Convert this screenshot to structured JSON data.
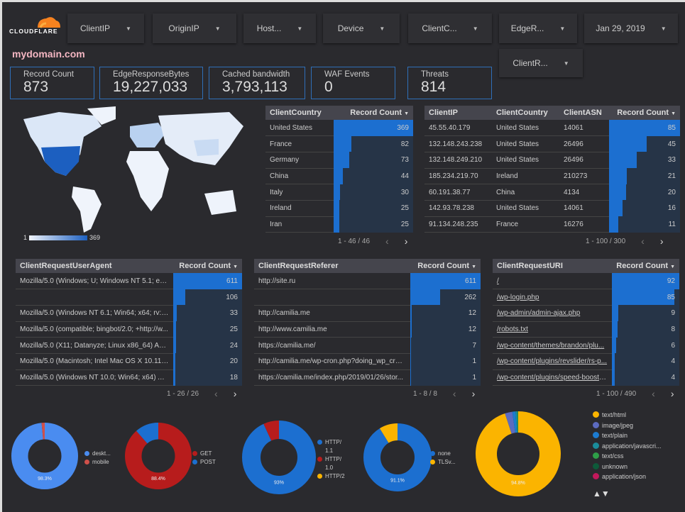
{
  "brand": {
    "name": "CLOUDFLARE",
    "orange": "#f6821f"
  },
  "filters": [
    {
      "label": "ClientIP"
    },
    {
      "label": "OriginIP"
    },
    {
      "label": "Host..."
    },
    {
      "label": "Device"
    },
    {
      "label": "ClientC..."
    },
    {
      "label": "EdgeR..."
    },
    {
      "label": "Jan 29, 2019"
    },
    {
      "label": "ClientR..."
    }
  ],
  "page_title": "mydomain.com",
  "kpis": [
    {
      "label": "Record Count",
      "value": "873"
    },
    {
      "label": "EdgeResponseBytes",
      "value": "19,227,033"
    },
    {
      "label": "Cached bandwidth",
      "value": "3,793,113"
    },
    {
      "label": "WAF Events",
      "value": "0"
    },
    {
      "label": "Threats",
      "value": "814"
    }
  ],
  "map": {
    "legend_min": "1",
    "legend_max": "369"
  },
  "country_table": {
    "headers": [
      "ClientCountry",
      "Record Count"
    ],
    "rows": [
      [
        "United States",
        369
      ],
      [
        "France",
        82
      ],
      [
        "Germany",
        73
      ],
      [
        "China",
        44
      ],
      [
        "Italy",
        30
      ],
      [
        "Ireland",
        25
      ],
      [
        "Iran",
        25
      ]
    ],
    "pager": "1 - 46 / 46"
  },
  "ip_table": {
    "headers": [
      "ClientIP",
      "ClientCountry",
      "ClientASN",
      "Record Count"
    ],
    "rows": [
      [
        "45.55.40.179",
        "United States",
        "14061",
        85
      ],
      [
        "132.148.243.238",
        "United States",
        "26496",
        45
      ],
      [
        "132.148.249.210",
        "United States",
        "26496",
        33
      ],
      [
        "185.234.219.70",
        "Ireland",
        "210273",
        21
      ],
      [
        "60.191.38.77",
        "China",
        "4134",
        20
      ],
      [
        "142.93.78.238",
        "United States",
        "14061",
        16
      ],
      [
        "91.134.248.235",
        "France",
        "16276",
        11
      ]
    ],
    "pager": "1 - 100 / 300"
  },
  "ua_table": {
    "headers": [
      "ClientRequestUserAgent",
      "Record Count"
    ],
    "rows": [
      [
        "Mozilla/5.0 (Windows; U; Windows NT 5.1; en-U...",
        611
      ],
      [
        "",
        106
      ],
      [
        "Mozilla/5.0 (Windows NT 6.1; Win64; x64; rv:64....",
        33
      ],
      [
        "Mozilla/5.0 (compatible; bingbot/2.0; +http://w...",
        25
      ],
      [
        "Mozilla/5.0 (X11; Datanyze; Linux x86_64) Appl...",
        24
      ],
      [
        "Mozilla/5.0 (Macintosh; Intel Mac OS X 10.11; r...",
        20
      ],
      [
        "Mozilla/5.0 (Windows NT 10.0; Win64; x64) App...",
        18
      ]
    ],
    "pager": "1 - 26 / 26"
  },
  "ref_table": {
    "headers": [
      "ClientRequestReferer",
      "Record Count"
    ],
    "rows": [
      [
        "http://site.ru",
        611
      ],
      [
        "",
        262
      ],
      [
        "http://camilia.me",
        12
      ],
      [
        "http://www.camilia.me",
        12
      ],
      [
        "https://camilia.me/",
        7
      ],
      [
        "http://camilia.me/wp-cron.php?doing_wp_cron...",
        1
      ],
      [
        "https://camilia.me/index.php/2019/01/26/stor...",
        1
      ]
    ],
    "pager": "1 - 8 / 8"
  },
  "uri_table": {
    "headers": [
      "ClientRequestURI",
      "Record Count"
    ],
    "rows": [
      [
        "/",
        92
      ],
      [
        "/wp-login.php",
        85
      ],
      [
        "/wp-admin/admin-ajax.php",
        9
      ],
      [
        "/robots.txt",
        8
      ],
      [
        "/wp-content/themes/brandon/plu...",
        6
      ],
      [
        "/wp-content/plugins/revslider/rs-p...",
        4
      ],
      [
        "/wp-content/plugins/speed-booste...",
        4
      ]
    ],
    "pager": "1 - 100 / 490"
  },
  "donuts": [
    {
      "label": "98.3%",
      "slices": [
        {
          "name": "deskt...",
          "value": 98.3,
          "color": "#4a8cf0"
        },
        {
          "name": "mobile",
          "value": 1.7,
          "color": "#d0504a"
        }
      ]
    },
    {
      "label": "88.4%",
      "slices": [
        {
          "name": "GET",
          "value": 88.4,
          "color": "#b71c1c"
        },
        {
          "name": "POST",
          "value": 11.6,
          "color": "#1c6fd0"
        }
      ]
    },
    {
      "label": "93%",
      "slices": [
        {
          "name": "HTTP/ 1.1",
          "value": 93,
          "color": "#1c6fd0"
        },
        {
          "name": "HTTP/ 1.0",
          "value": 7,
          "color": "#b71c1c"
        },
        {
          "name": "HTTP/2",
          "value": 0,
          "color": "#fbb400"
        }
      ]
    },
    {
      "label": "91.1%",
      "slices": [
        {
          "name": "none",
          "value": 91.1,
          "color": "#1c6fd0"
        },
        {
          "name": "TLSv...",
          "value": 8.9,
          "color": "#fbb400"
        }
      ]
    },
    {
      "label": "94.8%",
      "slices": [
        {
          "name": "text/html",
          "value": 94.8,
          "color": "#fbb400"
        },
        {
          "name": "image/jpeg",
          "value": 2.8,
          "color": "#5c6bc0"
        },
        {
          "name": "text/plain",
          "value": 1.2,
          "color": "#1c7bd0"
        },
        {
          "name": "application/javascri...",
          "value": 0.7,
          "color": "#1a8c9a"
        },
        {
          "name": "text/css",
          "value": 0.3,
          "color": "#2e9e48"
        },
        {
          "name": "unknown",
          "value": 0.2,
          "color": "#0e5a3a"
        },
        {
          "name": "application/json",
          "value": 0,
          "color": "#c2185b"
        }
      ]
    }
  ],
  "legend_pager": "▲▼"
}
